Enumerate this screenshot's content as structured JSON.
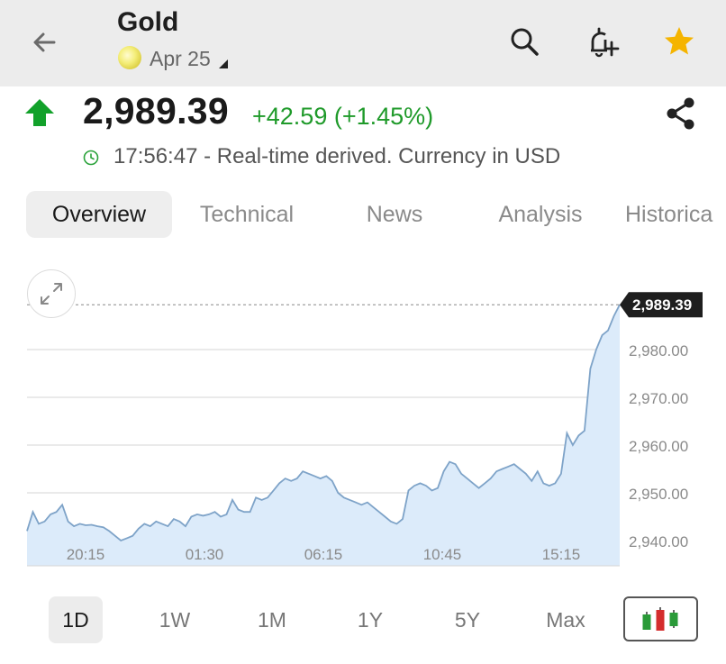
{
  "header": {
    "title": "Gold",
    "contract": "Apr 25",
    "icons": [
      "back-arrow-icon",
      "search-icon",
      "add-alert-icon",
      "star-icon"
    ],
    "star_color": "#f5b400"
  },
  "quote": {
    "price": "2,989.39",
    "change": "+42.59 (+1.45%)",
    "change_color": "#1f9a2a",
    "time": "17:56:47",
    "status": "17:56:47 - Real-time derived. Currency in USD"
  },
  "tabs": [
    {
      "label": "Overview",
      "active": true
    },
    {
      "label": "Technical",
      "active": false
    },
    {
      "label": "News",
      "active": false
    },
    {
      "label": "Analysis",
      "active": false
    },
    {
      "label": "Historica",
      "active": false
    }
  ],
  "chart_data": {
    "type": "area",
    "x_ticks": [
      "20:15",
      "01:30",
      "06:15",
      "10:45",
      "15:15"
    ],
    "y_ticks": [
      "2,940.00",
      "2,950.00",
      "2,960.00",
      "2,970.00",
      "2,980.00"
    ],
    "ylim": [
      2935,
      2990
    ],
    "last_price_label": "2,989.39",
    "line_color": "#7ea3c8",
    "fill_color": "#dcebfa",
    "series": [
      {
        "values": [
          2942,
          2946,
          2943.5,
          2944,
          2945.5,
          2946,
          2947.5,
          2944,
          2943,
          2943.5,
          2943.2,
          2943.3,
          2943,
          2942.8,
          2942,
          2941,
          2940,
          2940.5,
          2941,
          2942.5,
          2943.5,
          2943,
          2944,
          2943.5,
          2943,
          2944.5,
          2944,
          2943,
          2945,
          2945.5,
          2945.2,
          2945.5,
          2946,
          2945,
          2945.5,
          2948.5,
          2946.5,
          2946,
          2946,
          2949,
          2948.5,
          2949,
          2950.5,
          2952,
          2953,
          2952.5,
          2953,
          2954.5,
          2954,
          2953.5,
          2953,
          2953.5,
          2952.5,
          2950,
          2949,
          2948.5,
          2948,
          2947.5,
          2948,
          2947,
          2946,
          2945,
          2944,
          2943.5,
          2944.5,
          2950.5,
          2951.5,
          2952,
          2951.5,
          2950.5,
          2951,
          2954.5,
          2956.5,
          2956,
          2954,
          2953,
          2952,
          2951,
          2952,
          2953,
          2954.5,
          2955,
          2955.5,
          2956,
          2955,
          2954,
          2952.5,
          2954.5,
          2952,
          2951.5,
          2952,
          2954,
          2962.5,
          2960,
          2962,
          2963,
          2976,
          2980,
          2983,
          2984,
          2987,
          2989.39
        ]
      }
    ]
  },
  "ranges": [
    {
      "label": "1D",
      "active": true
    },
    {
      "label": "1W",
      "active": false
    },
    {
      "label": "1M",
      "active": false
    },
    {
      "label": "1Y",
      "active": false
    },
    {
      "label": "5Y",
      "active": false
    },
    {
      "label": "Max",
      "active": false
    }
  ],
  "candle_colors": [
    "#2a9a38",
    "#d42d2d",
    "#2a9a38"
  ]
}
